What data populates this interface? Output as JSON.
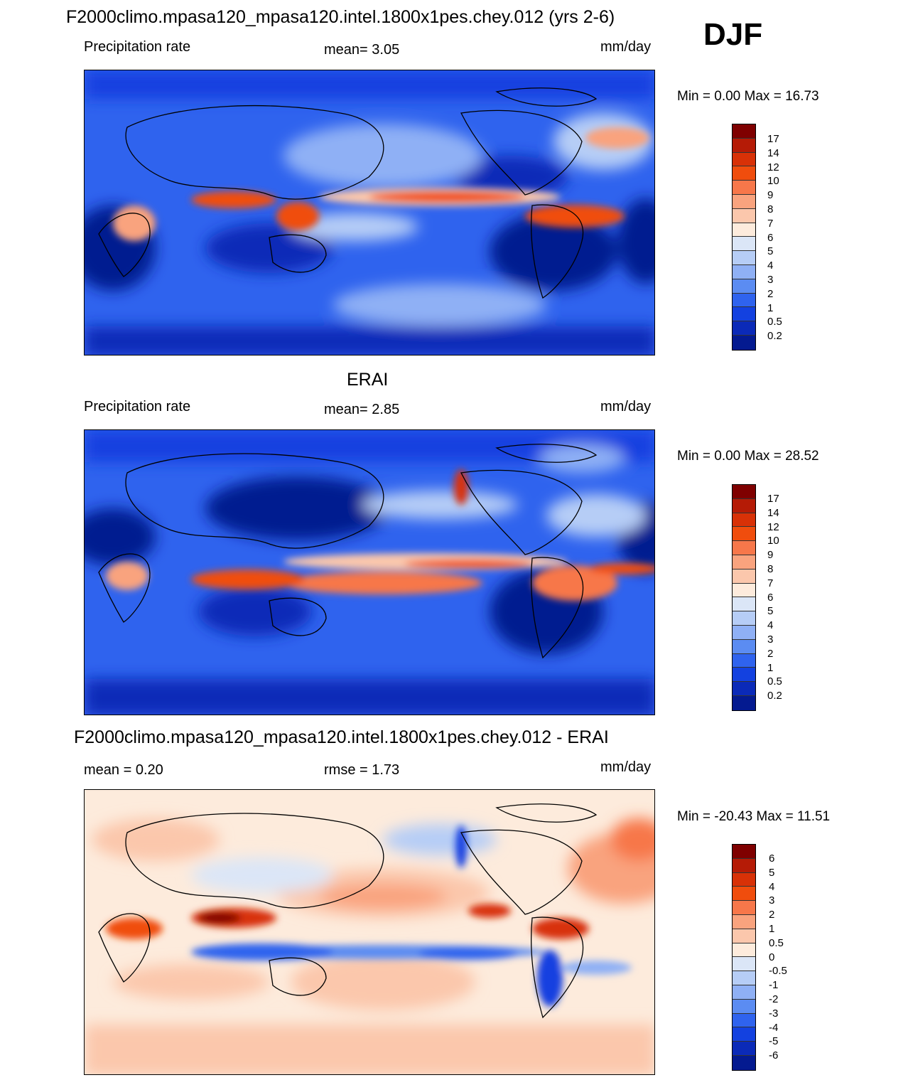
{
  "season_label": "DJF",
  "panels": [
    {
      "title": "F2000climo.mpasa120_mpasa120.intel.1800x1pes.chey.012 (yrs 2-6)",
      "left_label": "Precipitation rate",
      "center_label": "mean=   3.05",
      "units": "mm/day",
      "minmax": "Min =    0.00 Max =  16.73",
      "colorbar": {
        "levels": [
          "17",
          "14",
          "12",
          "10",
          "9",
          "8",
          "7",
          "6",
          "5",
          "4",
          "3",
          "2",
          "1",
          "0.5",
          "0.2"
        ],
        "colors": [
          "#7f0000",
          "#b51b06",
          "#d83107",
          "#f04d0d",
          "#f7774a",
          "#f9a37e",
          "#fbc7ac",
          "#fdebdc",
          "#dbe6f7",
          "#b6cdf6",
          "#8fb0f5",
          "#5b8cf2",
          "#2f63ee",
          "#1341e0",
          "#0b2ab8",
          "#041a90"
        ]
      }
    },
    {
      "title": "ERAI",
      "left_label": "Precipitation rate",
      "center_label": "mean=   2.85",
      "units": "mm/day",
      "minmax": "Min =    0.00 Max =  28.52",
      "colorbar": {
        "levels": [
          "17",
          "14",
          "12",
          "10",
          "9",
          "8",
          "7",
          "6",
          "5",
          "4",
          "3",
          "2",
          "1",
          "0.5",
          "0.2"
        ],
        "colors": [
          "#7f0000",
          "#b51b06",
          "#d83107",
          "#f04d0d",
          "#f7774a",
          "#f9a37e",
          "#fbc7ac",
          "#fdebdc",
          "#dbe6f7",
          "#b6cdf6",
          "#8fb0f5",
          "#5b8cf2",
          "#2f63ee",
          "#1341e0",
          "#0b2ab8",
          "#041a90"
        ]
      }
    },
    {
      "title": "F2000climo.mpasa120_mpasa120.intel.1800x1pes.chey.012 - ERAI",
      "left_label": "mean =    0.20",
      "center_label": "rmse =    1.73",
      "units": "mm/day",
      "minmax": "Min = -20.43 Max =  11.51",
      "colorbar": {
        "levels": [
          "6",
          "5",
          "4",
          "3",
          "2",
          "1",
          "0.5",
          "0",
          "-0.5",
          "-1",
          "-2",
          "-3",
          "-4",
          "-5",
          "-6"
        ],
        "colors": [
          "#7f0000",
          "#b51b06",
          "#d83107",
          "#f04d0d",
          "#f7774a",
          "#f9a37e",
          "#fbc7ac",
          "#fdebdc",
          "#dbe6f7",
          "#b6cdf6",
          "#8fb0f5",
          "#5b8cf2",
          "#2f63ee",
          "#1341e0",
          "#0b2ab8",
          "#041a90"
        ]
      }
    }
  ]
}
